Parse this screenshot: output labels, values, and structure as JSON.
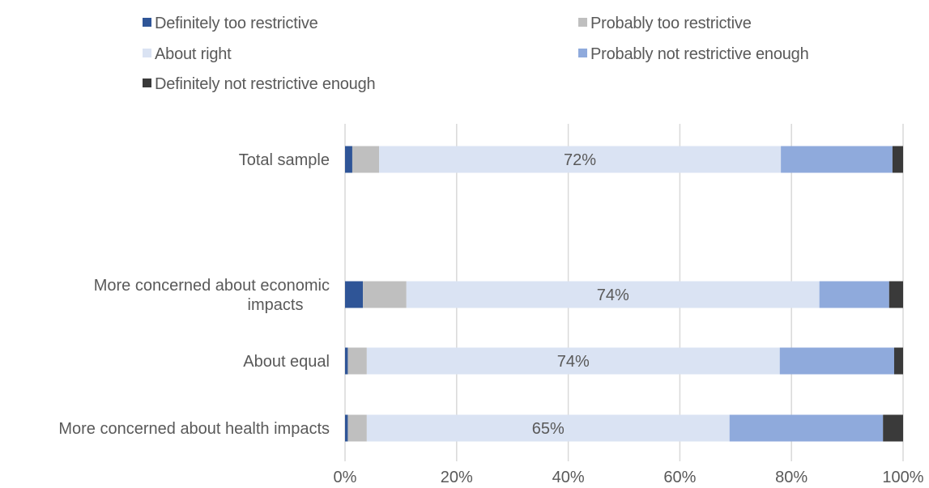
{
  "chart_data": {
    "type": "bar",
    "orientation": "horizontal",
    "stacked": "percent",
    "title": "",
    "xlabel": "",
    "ylabel": "",
    "xlim": [
      0,
      100
    ],
    "grid": true,
    "legend_position": "top",
    "x_ticks": [
      "0%",
      "20%",
      "40%",
      "60%",
      "80%",
      "100%"
    ],
    "categories": [
      "Total sample",
      "More concerned about economic impacts",
      "About equal",
      "More concerned about health impacts"
    ],
    "series": [
      {
        "name": "Definitely too restrictive",
        "color": "#2F5597",
        "values": [
          1.3,
          3.2,
          0.5,
          0.5
        ]
      },
      {
        "name": "Probably too restrictive",
        "color": "#BFBFBF",
        "values": [
          4.8,
          7.8,
          3.4,
          3.4
        ]
      },
      {
        "name": "About right",
        "color": "#DAE3F3",
        "values": [
          72,
          74,
          74,
          65
        ]
      },
      {
        "name": "Probably not restrictive enough",
        "color": "#8FAADC",
        "values": [
          20,
          12.5,
          20.5,
          27.5
        ]
      },
      {
        "name": "Definitely not restrictive enough",
        "color": "#3A3A3A",
        "values": [
          1.9,
          2.5,
          1.6,
          3.6
        ]
      }
    ],
    "data_labels": [
      "72%",
      "74%",
      "74%",
      "65%"
    ]
  }
}
